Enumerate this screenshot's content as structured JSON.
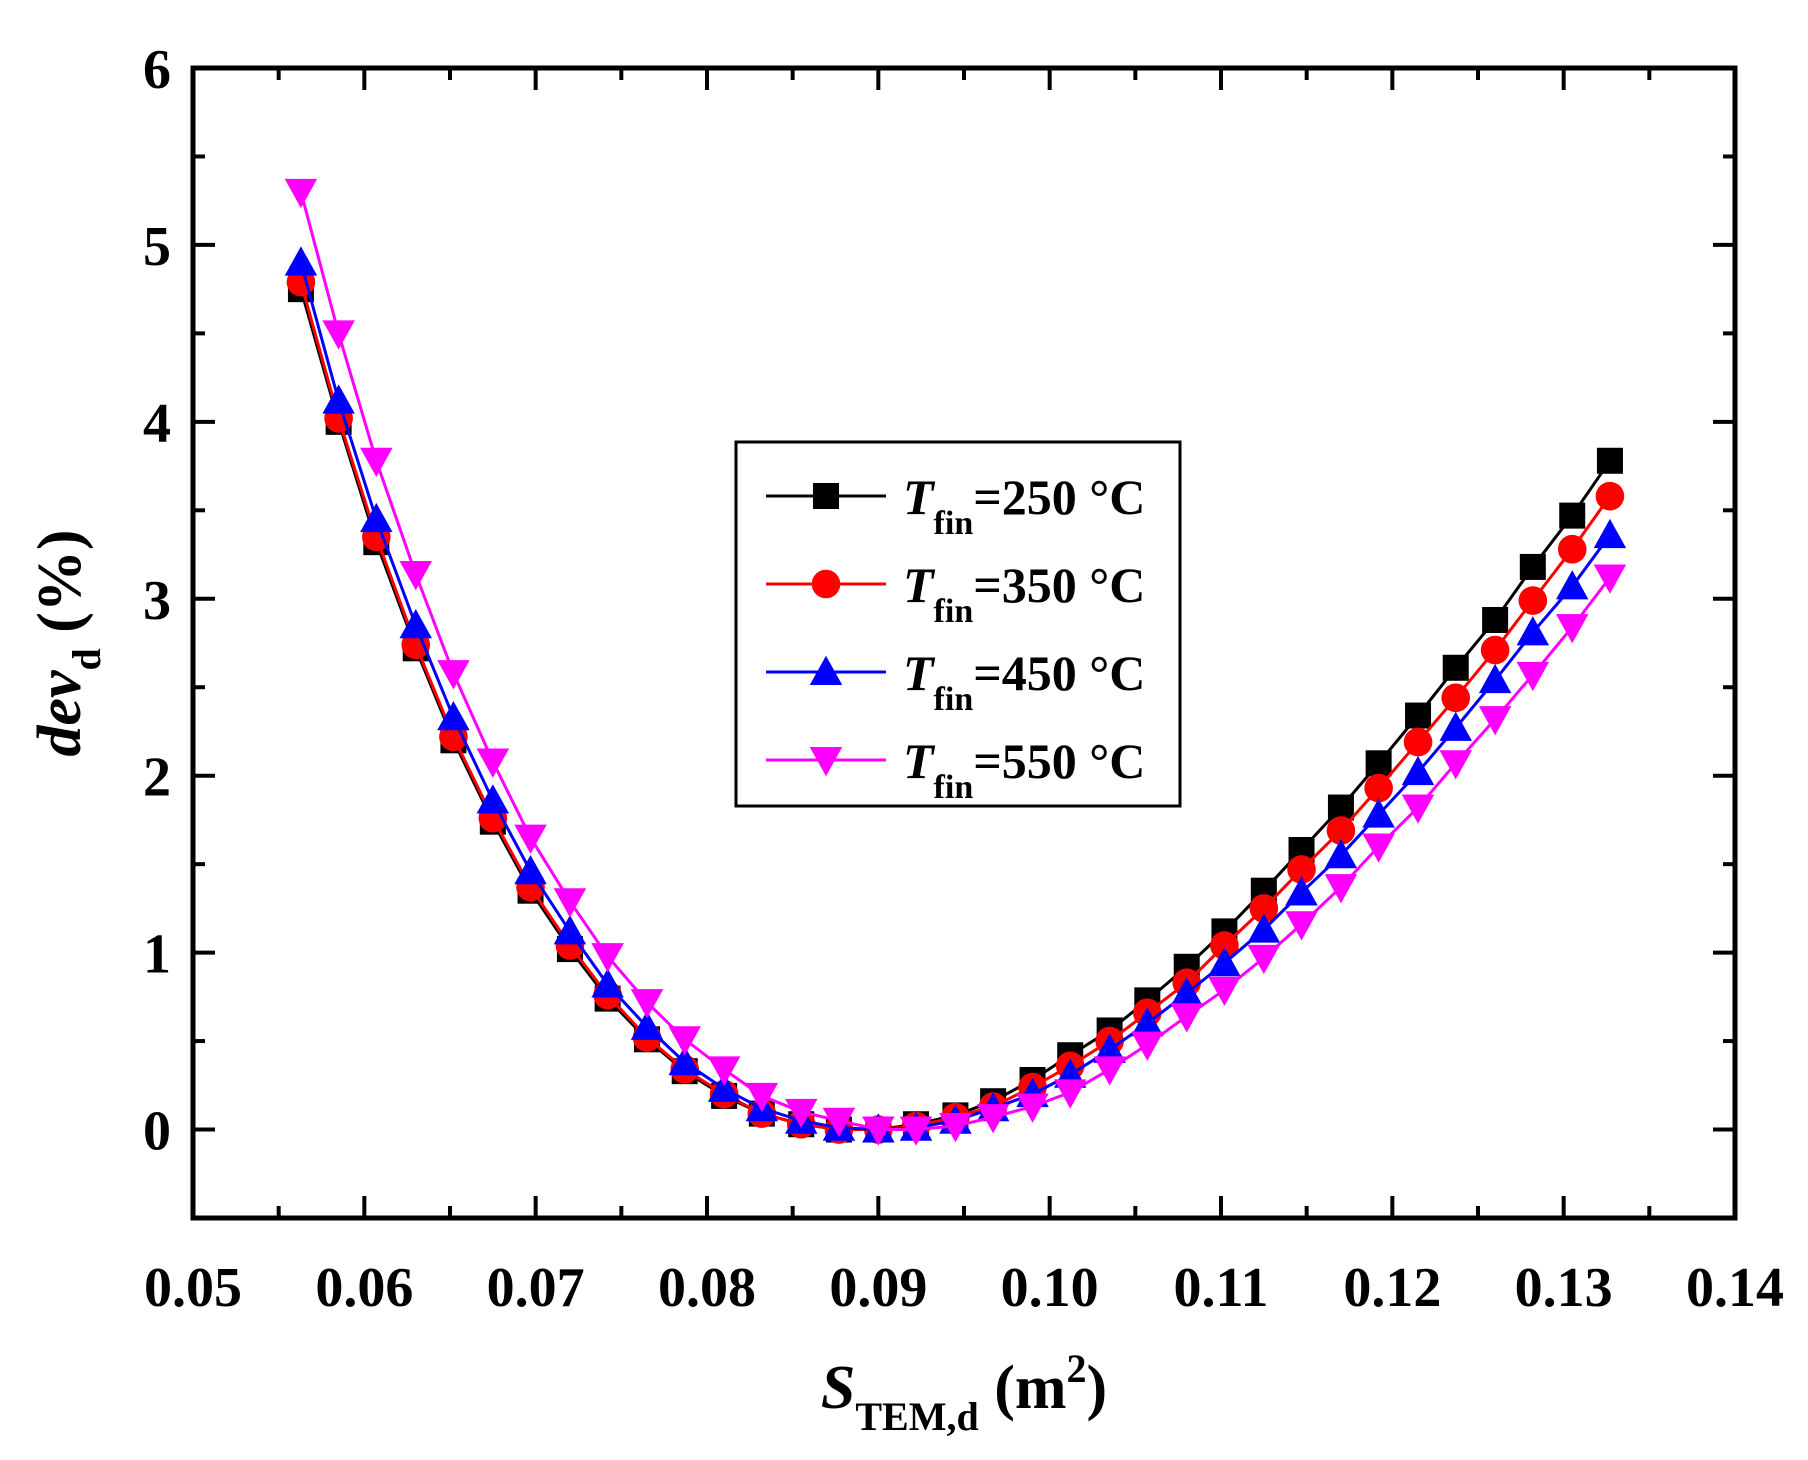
{
  "chart_data": {
    "type": "line",
    "xlabel": {
      "main": "S",
      "sub": "TEM,d",
      "unit_open": " (m",
      "sup": "2",
      "unit_close": ")"
    },
    "ylabel": {
      "main": "dev",
      "sub": "d",
      "unit": " (%)"
    },
    "xlim": [
      0.05,
      0.14
    ],
    "ylim": [
      -0.5,
      6
    ],
    "xticks": [
      "0.05",
      "0.06",
      "0.07",
      "0.08",
      "0.09",
      "0.10",
      "0.11",
      "0.12",
      "0.13",
      "0.14"
    ],
    "xtick_values": [
      0.05,
      0.06,
      0.07,
      0.08,
      0.09,
      0.1,
      0.11,
      0.12,
      0.13,
      0.14
    ],
    "yticks": [
      "0",
      "1",
      "2",
      "3",
      "4",
      "5",
      "6"
    ],
    "ytick_values": [
      0,
      1,
      2,
      3,
      4,
      5,
      6
    ],
    "legend_position": "center-right",
    "x": [
      0.0563,
      0.0585,
      0.0607,
      0.063,
      0.0652,
      0.0675,
      0.0697,
      0.072,
      0.0742,
      0.0765,
      0.0787,
      0.081,
      0.0832,
      0.0855,
      0.0877,
      0.09,
      0.0922,
      0.0945,
      0.0967,
      0.099,
      0.1012,
      0.1035,
      0.1057,
      0.108,
      0.1102,
      0.1125,
      0.1147,
      0.117,
      0.1192,
      0.1215,
      0.1237,
      0.126,
      0.1282,
      0.1305,
      0.1327
    ],
    "series": [
      {
        "name_main": "T",
        "name_sub": "fin",
        "name_rest": "=250 °C",
        "color": "#000000",
        "marker": "square",
        "values": [
          4.75,
          4.0,
          3.32,
          2.72,
          2.2,
          1.74,
          1.35,
          1.02,
          0.74,
          0.51,
          0.33,
          0.19,
          0.09,
          0.03,
          0.0,
          0.0,
          0.03,
          0.08,
          0.16,
          0.28,
          0.42,
          0.56,
          0.73,
          0.92,
          1.12,
          1.35,
          1.58,
          1.82,
          2.07,
          2.34,
          2.61,
          2.88,
          3.18,
          3.47,
          3.78
        ]
      },
      {
        "name_main": "T",
        "name_sub": "fin",
        "name_rest": "=350 °C",
        "color": "#ff0000",
        "marker": "circle",
        "values": [
          4.79,
          4.02,
          3.35,
          2.74,
          2.22,
          1.76,
          1.37,
          1.04,
          0.76,
          0.52,
          0.34,
          0.2,
          0.09,
          0.03,
          0.0,
          0.0,
          0.02,
          0.07,
          0.13,
          0.24,
          0.36,
          0.5,
          0.66,
          0.83,
          1.04,
          1.25,
          1.47,
          1.69,
          1.93,
          2.19,
          2.44,
          2.71,
          2.99,
          3.28,
          3.58
        ]
      },
      {
        "name_main": "T",
        "name_sub": "fin",
        "name_rest": "=450 °C",
        "color": "#0000ff",
        "marker": "triangle-up",
        "values": [
          4.9,
          4.12,
          3.45,
          2.85,
          2.33,
          1.86,
          1.46,
          1.12,
          0.82,
          0.58,
          0.38,
          0.23,
          0.12,
          0.05,
          0.01,
          0.0,
          0.01,
          0.05,
          0.12,
          0.2,
          0.31,
          0.45,
          0.6,
          0.77,
          0.94,
          1.13,
          1.34,
          1.55,
          1.78,
          2.02,
          2.27,
          2.54,
          2.81,
          3.07,
          3.36
        ]
      },
      {
        "name_main": "T",
        "name_sub": "fin",
        "name_rest": "=550 °C",
        "color": "#ff00ff",
        "marker": "triangle-down",
        "values": [
          5.3,
          4.5,
          3.78,
          3.14,
          2.58,
          2.08,
          1.65,
          1.29,
          0.98,
          0.72,
          0.51,
          0.34,
          0.19,
          0.1,
          0.05,
          0.0,
          0.0,
          0.02,
          0.07,
          0.13,
          0.21,
          0.34,
          0.48,
          0.64,
          0.79,
          0.97,
          1.16,
          1.37,
          1.6,
          1.82,
          2.07,
          2.32,
          2.57,
          2.84,
          3.12
        ]
      }
    ]
  }
}
